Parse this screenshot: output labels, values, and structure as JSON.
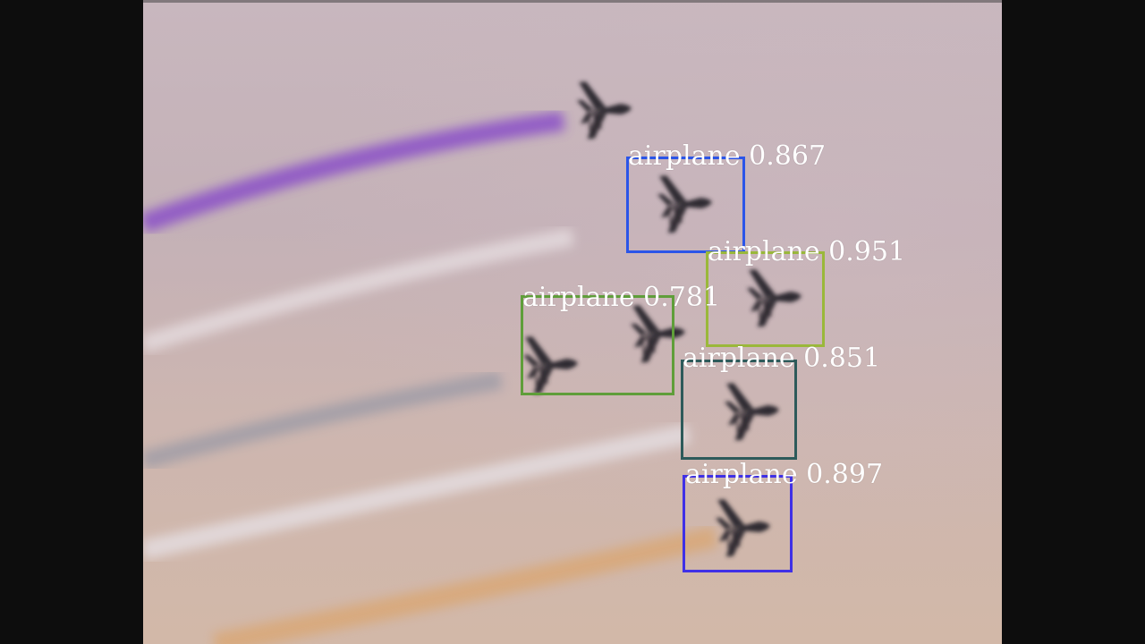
{
  "detections": [
    {
      "label": "airplane",
      "score": "0.867",
      "color": "#2b55e8"
    },
    {
      "label": "airplane",
      "score": "0.951",
      "color": "#9ab83a"
    },
    {
      "label": "airplane",
      "score": "0.781",
      "color": "#5f9e3a"
    },
    {
      "label": "airplane",
      "score": "0.851",
      "color": "#2d5a5a"
    },
    {
      "label": "airplane",
      "score": "0.897",
      "color": "#3f30e6"
    }
  ],
  "colors": {
    "letterbox": "#0d0d0d",
    "sky": "#c8b7be",
    "aircraft": "#2f2a31",
    "smoke_purple": "#8a50c8",
    "smoke_white": "#e4dde0",
    "smoke_grey": "#9a9aa6",
    "smoke_orange": "#d9a878"
  }
}
